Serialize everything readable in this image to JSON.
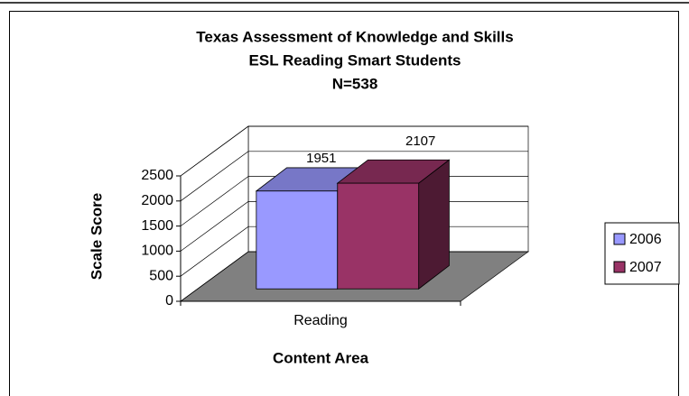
{
  "chart_data": {
    "type": "bar3d",
    "title_lines": [
      "Texas Assessment of Knowledge and Skills",
      "ESL Reading Smart Students",
      "N=538"
    ],
    "categories": [
      "Reading"
    ],
    "series": [
      {
        "name": "2006",
        "color": "#9999ff",
        "values": [
          1951
        ]
      },
      {
        "name": "2007",
        "color": "#993366",
        "values": [
          2107
        ]
      }
    ],
    "ylim": [
      0,
      2500
    ],
    "yticks": [
      0,
      500,
      1000,
      1500,
      2000,
      2500
    ],
    "y_label": "Scale Score",
    "x_label": "Content Area",
    "grid": true,
    "legend": "right"
  }
}
